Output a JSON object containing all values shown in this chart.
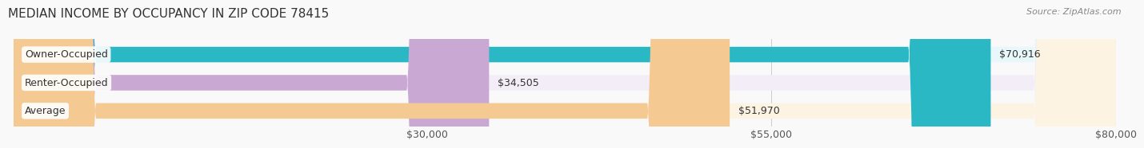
{
  "title": "MEDIAN INCOME BY OCCUPANCY IN ZIP CODE 78415",
  "source": "Source: ZipAtlas.com",
  "categories": [
    "Owner-Occupied",
    "Renter-Occupied",
    "Average"
  ],
  "values": [
    70916,
    34505,
    51970
  ],
  "bar_colors": [
    "#2ab8c5",
    "#c9a8d4",
    "#f5c992"
  ],
  "bar_bg_colors": [
    "#e8f8fa",
    "#f3edf7",
    "#fdf3e3"
  ],
  "value_labels": [
    "$70,916",
    "$34,505",
    "$51,970"
  ],
  "xlim": [
    0,
    80000
  ],
  "xticks": [
    30000,
    55000,
    80000
  ],
  "xticklabels": [
    "$30,000",
    "$55,000",
    "$80,000"
  ],
  "label_fontsize": 9,
  "title_fontsize": 11,
  "source_fontsize": 8,
  "bar_height": 0.55,
  "background_color": "#f9f9f9"
}
